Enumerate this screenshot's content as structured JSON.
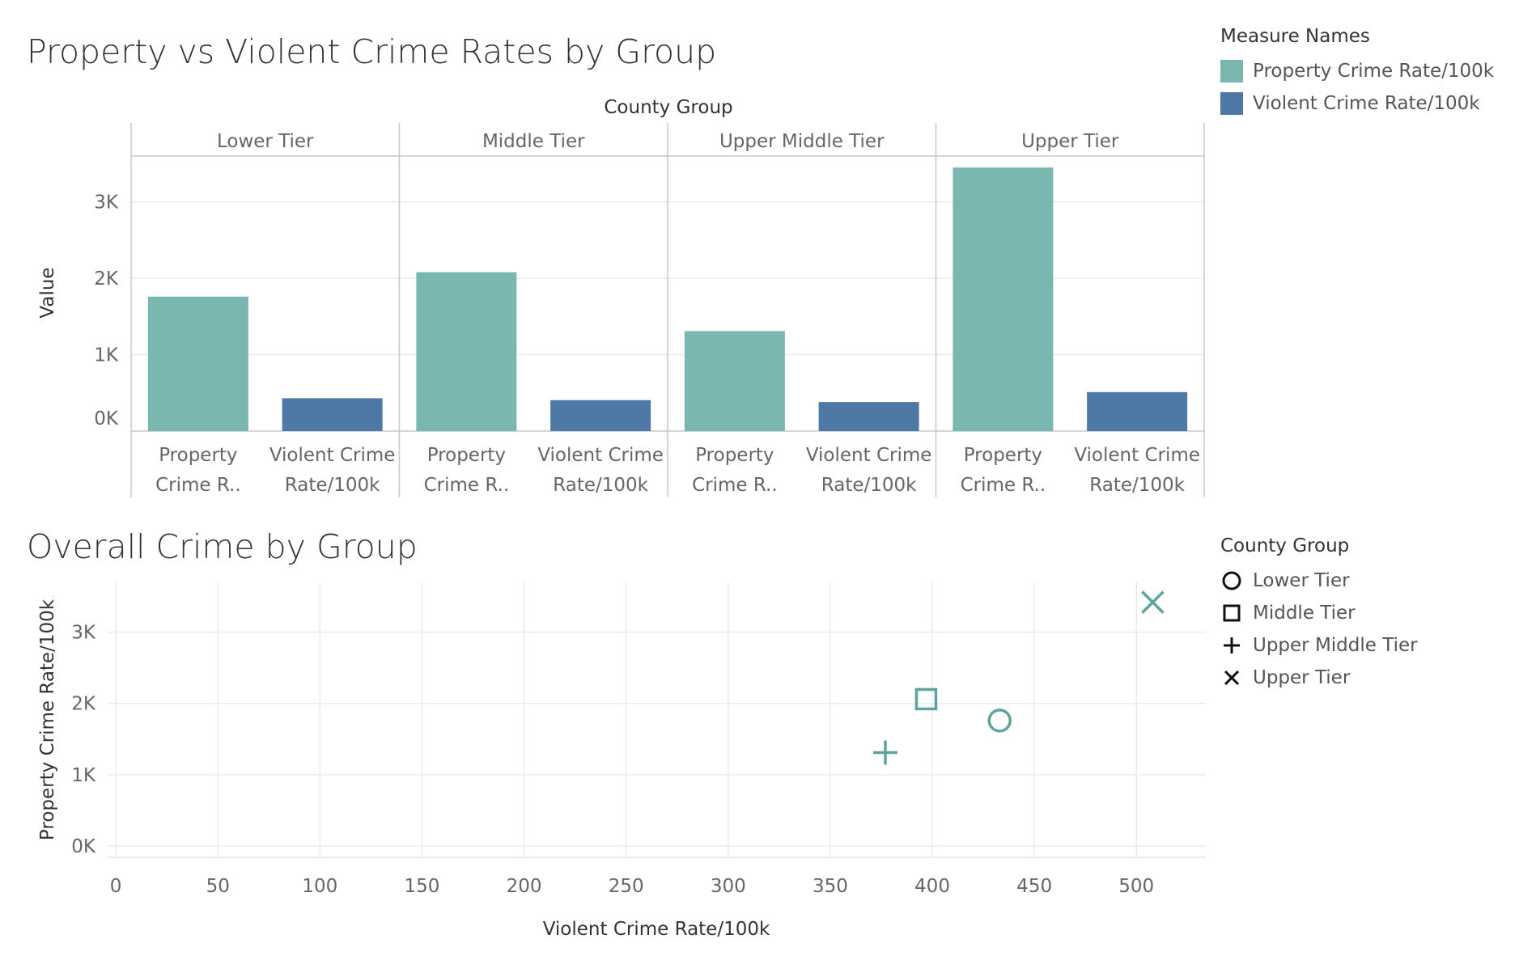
{
  "colors": {
    "property": "#79b7b0",
    "violent": "#4e79a7",
    "scatter": "#5ea39e",
    "grid": "#ebebeb",
    "axis": "#c8c8c8"
  },
  "chart_data": [
    {
      "type": "bar",
      "title": "Property vs Violent Crime Rates by Group",
      "column_header": "County Group",
      "ylabel": "Value",
      "ylim": [
        0,
        3600
      ],
      "yticks": [
        0,
        1000,
        2000,
        3000
      ],
      "ytick_labels": [
        "0K",
        "1K",
        "2K",
        "3K"
      ],
      "groups": [
        "Lower Tier",
        "Middle Tier",
        "Upper Middle Tier",
        "Upper Tier"
      ],
      "measure_labels": [
        [
          "Property",
          "Crime R.."
        ],
        [
          "Violent Crime",
          "Rate/100k"
        ]
      ],
      "series": [
        {
          "name": "Property Crime Rate/100k",
          "values": [
            1760,
            2080,
            1310,
            3450
          ]
        },
        {
          "name": "Violent Crime Rate/100k",
          "values": [
            430,
            405,
            380,
            510
          ]
        }
      ],
      "legend_title": "Measure Names",
      "legend_position": "top-right"
    },
    {
      "type": "scatter",
      "title": "Overall Crime by Group",
      "xlabel": "Violent Crime Rate/100k",
      "ylabel": "Property Crime Rate/100k",
      "xlim": [
        -4,
        534
      ],
      "ylim": [
        -160,
        3700
      ],
      "xticks": [
        0,
        50,
        100,
        150,
        200,
        250,
        300,
        350,
        400,
        450,
        500
      ],
      "yticks": [
        0,
        1000,
        2000,
        3000
      ],
      "ytick_labels": [
        "0K",
        "1K",
        "2K",
        "3K"
      ],
      "points": [
        {
          "group": "Lower Tier",
          "shape": "circle",
          "x": 433,
          "y": 1760
        },
        {
          "group": "Middle Tier",
          "shape": "square",
          "x": 397,
          "y": 2060
        },
        {
          "group": "Upper Middle Tier",
          "shape": "plus",
          "x": 377,
          "y": 1310
        },
        {
          "group": "Upper Tier",
          "shape": "cross",
          "x": 508,
          "y": 3420
        }
      ],
      "legend_title": "County Group",
      "legend_position": "right"
    }
  ]
}
